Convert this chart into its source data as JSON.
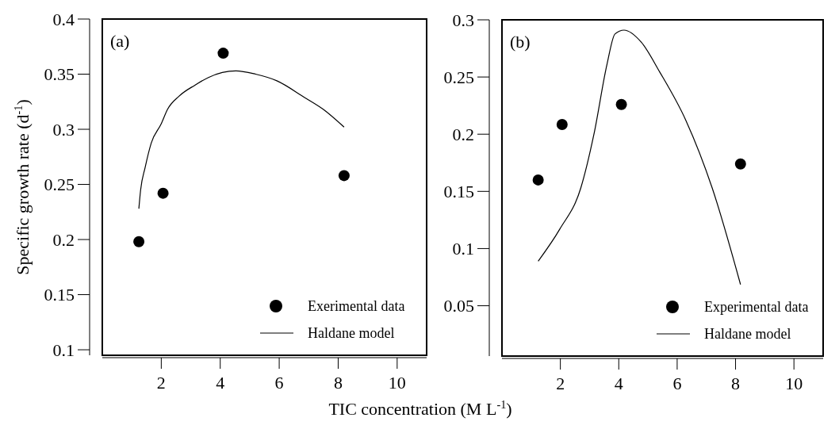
{
  "chart_data": [
    {
      "type": "scatter",
      "ylabel": "Specific growth rate (d$^{-1}$)",
      "xlabel": "TIC concentration (M L$^{-1}$)",
      "annotations": [
        "(a)"
      ],
      "xlim": [
        0,
        11
      ],
      "xticks": [
        2,
        4,
        6,
        8,
        10
      ],
      "ylim": [
        0.095,
        0.4
      ],
      "yticks": [
        0.1,
        0.15,
        0.2,
        0.25,
        0.3,
        0.35,
        0.4
      ],
      "grid": false,
      "legend": "bottom right",
      "series": [
        {
          "name": "Exerimental data",
          "marker": "circle",
          "color": "#000000",
          "x": [
            1.24,
            2.06,
            4.1,
            8.2
          ],
          "values": [
            0.198,
            0.242,
            0.369,
            0.258
          ]
        },
        {
          "name": "Haldane model",
          "type": "line",
          "line_style": "solid",
          "color": "#000000",
          "x": [
            1.24,
            1.3,
            1.45,
            1.66,
            2.0,
            2.21,
            2.6,
            3.14,
            3.6,
            4.07,
            4.53,
            5.2,
            5.92,
            6.85,
            7.5,
            8.2
          ],
          "values": [
            0.228,
            0.245,
            0.265,
            0.2875,
            0.305,
            0.318,
            0.33,
            0.34,
            0.347,
            0.3515,
            0.353,
            0.35,
            0.344,
            0.329,
            0.318,
            0.302
          ]
        }
      ]
    },
    {
      "type": "scatter",
      "annotations": [
        "(b)"
      ],
      "xlim": [
        0,
        11
      ],
      "xticks": [
        2,
        4,
        6,
        8,
        10
      ],
      "ylim": [
        0.006,
        0.3
      ],
      "yticks": [
        0.05,
        0.1,
        0.15,
        0.2,
        0.25,
        0.3
      ],
      "grid": false,
      "legend": "bottom right",
      "series": [
        {
          "name": "Experimental data",
          "marker": "circle",
          "color": "#000000",
          "x": [
            1.24,
            2.06,
            4.09,
            8.17
          ],
          "values": [
            0.16,
            0.2085,
            0.226,
            0.174
          ]
        },
        {
          "name": "Haldane model",
          "type": "line",
          "line_style": "solid",
          "color": "#000000",
          "x": [
            1.24,
            1.98,
            2.7,
            3.15,
            3.6,
            3.87,
            4.18,
            4.77,
            5.4,
            6.3,
            7.2,
            8.17
          ],
          "values": [
            0.089,
            0.117,
            0.153,
            0.2,
            0.2615,
            0.2876,
            0.291,
            0.2805,
            0.2545,
            0.212,
            0.153,
            0.0686
          ]
        }
      ]
    }
  ]
}
